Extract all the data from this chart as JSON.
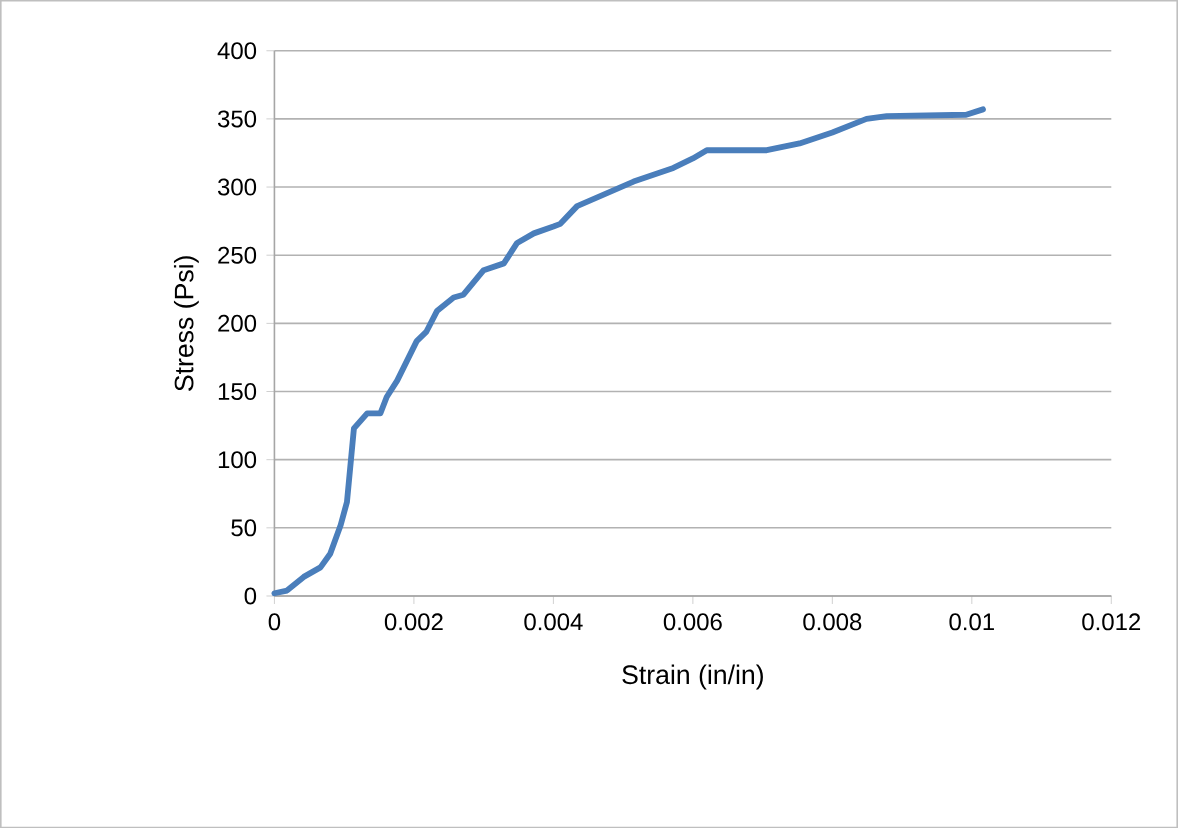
{
  "chart_data": {
    "type": "line",
    "xlabel": "Strain (in/in)",
    "ylabel": "Stress (Psi)",
    "xlim": [
      0,
      0.012
    ],
    "xticks": [
      0,
      0.002,
      0.004,
      0.006,
      0.008,
      0.01,
      0.012
    ],
    "ylim": [
      0,
      400
    ],
    "yticks": [
      0,
      50,
      100,
      150,
      200,
      250,
      300,
      350,
      400
    ],
    "grid": "y",
    "line_style": "solid",
    "marker": "none",
    "series": [
      {
        "color": "#4a7ebb",
        "x": [
          0,
          0.00018,
          0.00042,
          0.00066,
          0.0008,
          0.00095,
          0.00104,
          0.00109,
          0.00114,
          0.00133,
          0.00152,
          0.00161,
          0.00176,
          0.00204,
          0.00218,
          0.00233,
          0.00257,
          0.00271,
          0.003,
          0.00329,
          0.00348,
          0.00372,
          0.004,
          0.0041,
          0.00434,
          0.00515,
          0.00572,
          0.006,
          0.0062,
          0.00706,
          0.00753,
          0.008,
          0.00849,
          0.00878,
          0.00992,
          0.01016
        ],
        "values": [
          2,
          4,
          14,
          21,
          31,
          52,
          69,
          96,
          123,
          134,
          134,
          146,
          158,
          187,
          194,
          209,
          219,
          221,
          239,
          244,
          259,
          266,
          271,
          273,
          286,
          304,
          314,
          321,
          327,
          327,
          332,
          340,
          350,
          352,
          353,
          357
        ]
      }
    ]
  }
}
